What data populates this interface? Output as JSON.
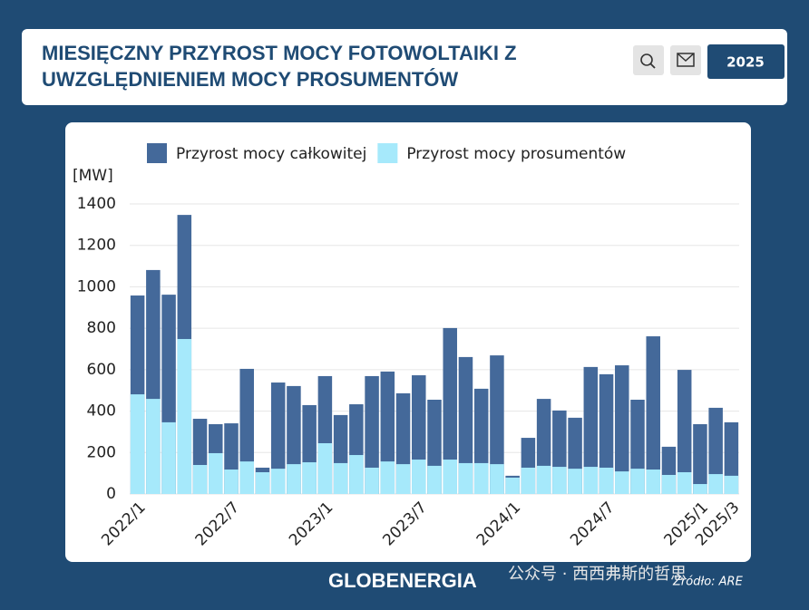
{
  "header": {
    "title_line1": "MIESIĘCZNY PRZYROST MOCY FOTOWOLTAIKI Z",
    "title_line2": "UWZGLĘDNIENIEM MOCY PROSUMENTÓW",
    "year_button": "2025"
  },
  "footer": {
    "brand": "GLOBENERGIA",
    "source": "Źródło: ARE",
    "watermark": "公众号 · 西西弗斯的哲思"
  },
  "chart_data": {
    "type": "bar",
    "y_label": "[MW]",
    "categories": [
      "2022/1",
      null,
      null,
      null,
      null,
      null,
      "2022/7",
      null,
      null,
      null,
      null,
      null,
      "2023/1",
      null,
      null,
      null,
      null,
      null,
      "2023/7",
      null,
      null,
      null,
      null,
      null,
      "2024/1",
      null,
      null,
      null,
      null,
      null,
      "2024/7",
      null,
      null,
      null,
      null,
      null,
      "2025/1",
      null,
      "2025/3"
    ],
    "series": [
      {
        "name": "Przyrost mocy całkowitej",
        "color": "#44699a",
        "values": [
          958,
          1081,
          962,
          1347,
          363,
          337,
          341,
          604,
          127,
          538,
          521,
          429,
          569,
          381,
          433,
          569,
          591,
          486,
          573,
          455,
          801,
          661,
          508,
          669,
          88,
          271,
          459,
          403,
          368,
          613,
          578,
          621,
          455,
          761,
          228,
          599,
          337,
          416,
          346
        ]
      },
      {
        "name": "Przyrost mocy prosumentów",
        "color": "#a6e9fb",
        "values": [
          481,
          459,
          346,
          748,
          140,
          197,
          118,
          157,
          105,
          122,
          144,
          153,
          245,
          149,
          188,
          127,
          157,
          144,
          166,
          136,
          166,
          149,
          149,
          144,
          79,
          127,
          136,
          131,
          122,
          131,
          127,
          109,
          122,
          118,
          92,
          105,
          48,
          96,
          88
        ]
      }
    ],
    "ylim": [
      0,
      1400
    ],
    "yticks": [
      0,
      200,
      400,
      600,
      800,
      1000,
      1200,
      1400
    ],
    "grid": true,
    "legend": "top"
  }
}
